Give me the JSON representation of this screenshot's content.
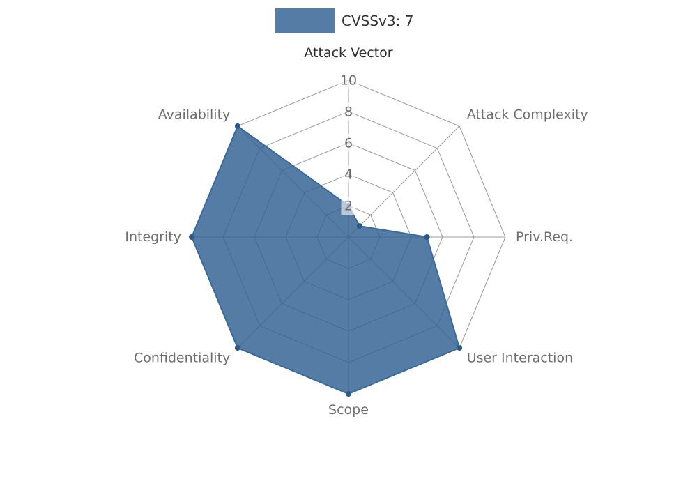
{
  "legend": {
    "label": "CVSSv3: 7"
  },
  "chart_data": {
    "type": "radar",
    "title": "CVSSv3: 7",
    "categories": [
      "Attack Vector",
      "Attack Complexity",
      "Priv.Req.",
      "User Interaction",
      "Scope",
      "Confidentiality",
      "Integrity",
      "Availability"
    ],
    "series": [
      {
        "name": "CVSSv3: 7",
        "values": [
          2,
          1,
          5,
          10,
          10,
          10,
          10,
          10
        ]
      }
    ],
    "ticks": [
      2,
      4,
      6,
      8,
      10
    ],
    "rmax": 10,
    "grid": true,
    "legend_position": "top-center",
    "colors": {
      "fill": "#2f5f90",
      "fill_opacity": 0.82,
      "stroke": "#3a6a9c",
      "marker": "#2d5a87",
      "grid": "#9a9a9a",
      "tick_text": "#6b6b6b",
      "tick_bg_opacity": 0.6,
      "axis_label_first": "#2b2b2b",
      "axis_label": "#6e6e6e",
      "legend_swatch": "#547ca4",
      "legend_text": "#333333"
    }
  }
}
